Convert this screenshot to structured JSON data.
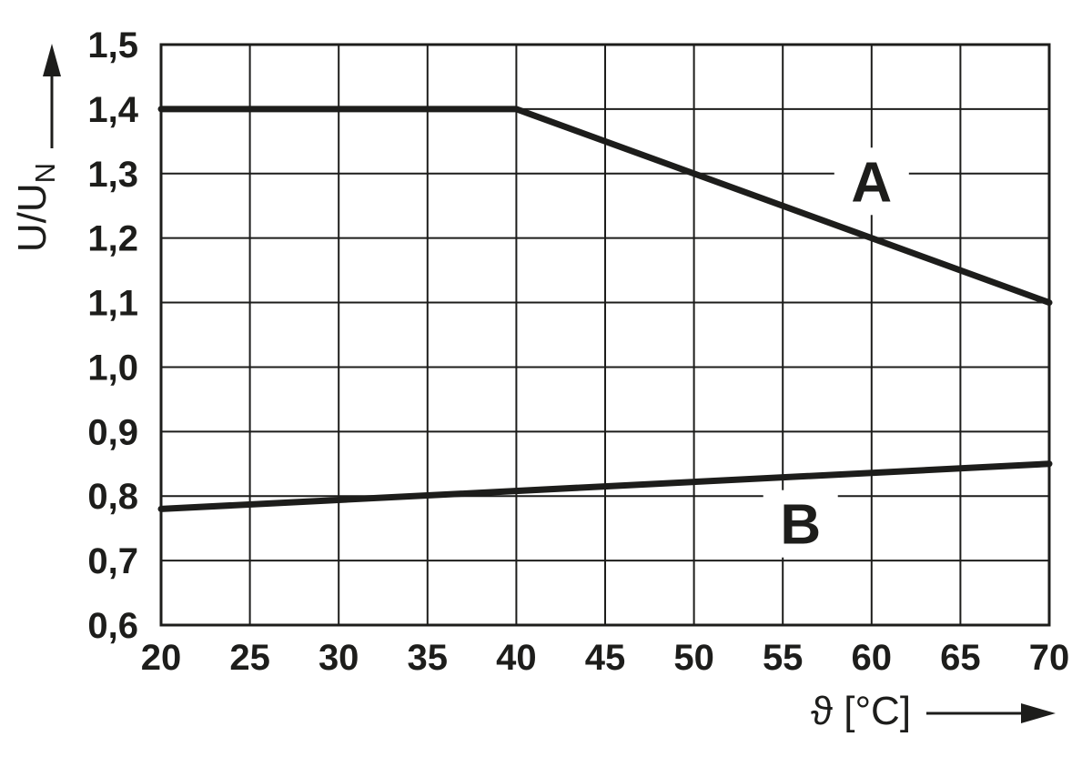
{
  "chart_data": {
    "type": "line",
    "title": "",
    "xlabel": "ϑ [°C]",
    "ylabel_main": "U/U",
    "ylabel_sub": "N",
    "xlim": [
      20,
      70
    ],
    "ylim": [
      0.6,
      1.5
    ],
    "grid": true,
    "background_color": "#ffffff",
    "line_color": "#1d1d1b",
    "grid_color": "#1d1d1b",
    "text_color": "#1d1d1b",
    "x_ticks": [
      20,
      25,
      30,
      35,
      40,
      45,
      50,
      55,
      60,
      65,
      70
    ],
    "x_tick_labels": [
      "20",
      "25",
      "30",
      "35",
      "40",
      "45",
      "50",
      "55",
      "60",
      "65",
      "70"
    ],
    "y_ticks": [
      1.5,
      1.4,
      1.3,
      1.2,
      1.1,
      1.0,
      0.9,
      0.8,
      0.7,
      0.6
    ],
    "y_tick_labels": [
      "1,5",
      "1,4",
      "1,3",
      "1,2",
      "1,1",
      "1,0",
      "0,9",
      "0,8",
      "0,7",
      "0,6"
    ],
    "series": [
      {
        "name": "A",
        "points": [
          [
            20,
            1.4
          ],
          [
            40,
            1.4
          ],
          [
            70,
            1.1
          ]
        ],
        "label_pos": {
          "x": 60,
          "y": 1.288
        }
      },
      {
        "name": "B",
        "points": [
          [
            20,
            0.78
          ],
          [
            70,
            0.85
          ]
        ],
        "label_pos": {
          "x": 56,
          "y": 0.757
        }
      }
    ]
  }
}
